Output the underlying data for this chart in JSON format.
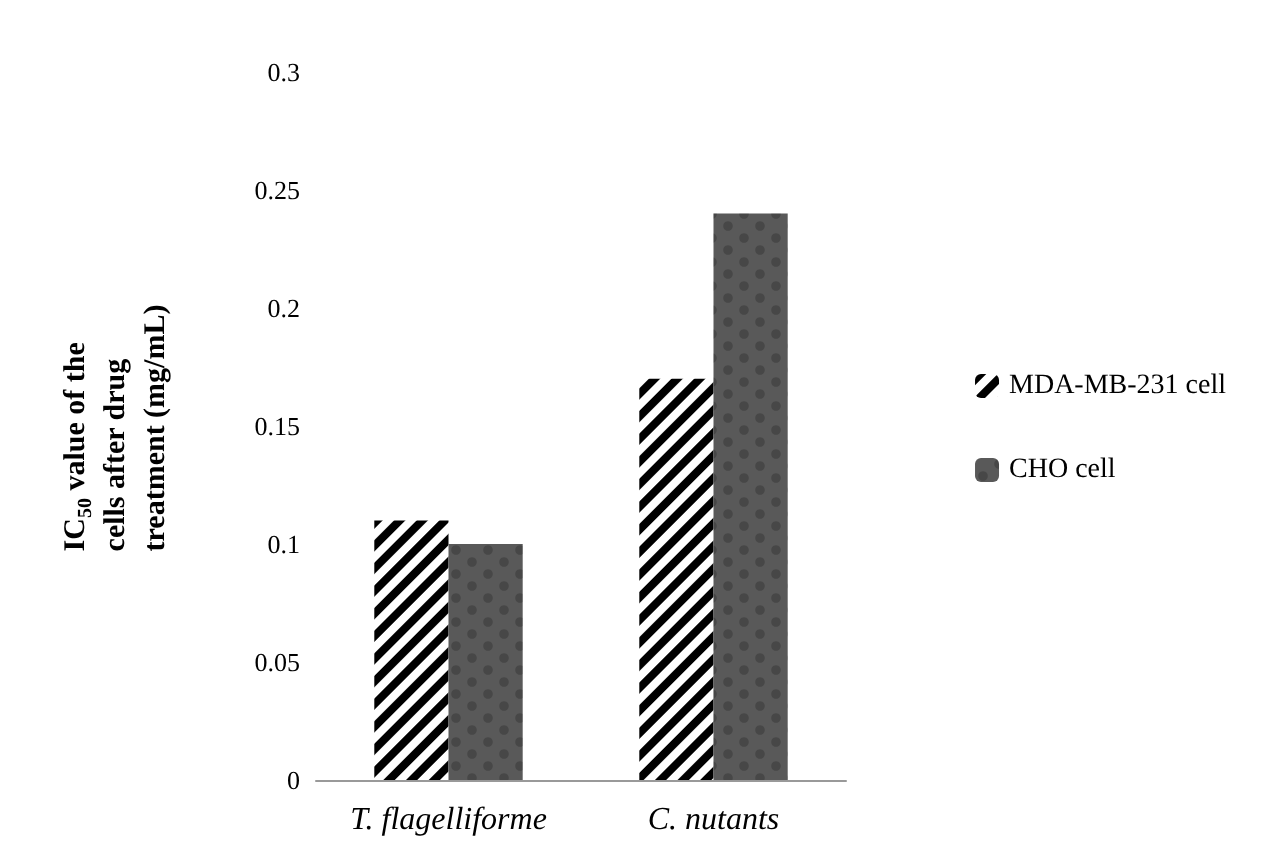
{
  "chart_data": {
    "type": "bar",
    "ylabel": "IC$_{50}$ value of the cells after drug treatment (mg/mL)",
    "categories": [
      "T. flagelliforme",
      "C. nutants"
    ],
    "series": [
      {
        "name": "MDA-MB-231 cell",
        "color": "#ffffff",
        "values": [
          0.11,
          0.17
        ]
      },
      {
        "name": "CHO cell",
        "color": "#595959",
        "values": [
          0.1,
          0.24
        ]
      }
    ],
    "ylim": [
      0,
      0.3
    ],
    "yticks": [
      0,
      0.05,
      0.1,
      0.15,
      0.2,
      0.25,
      0.3
    ],
    "grid": false,
    "legend": "right"
  }
}
